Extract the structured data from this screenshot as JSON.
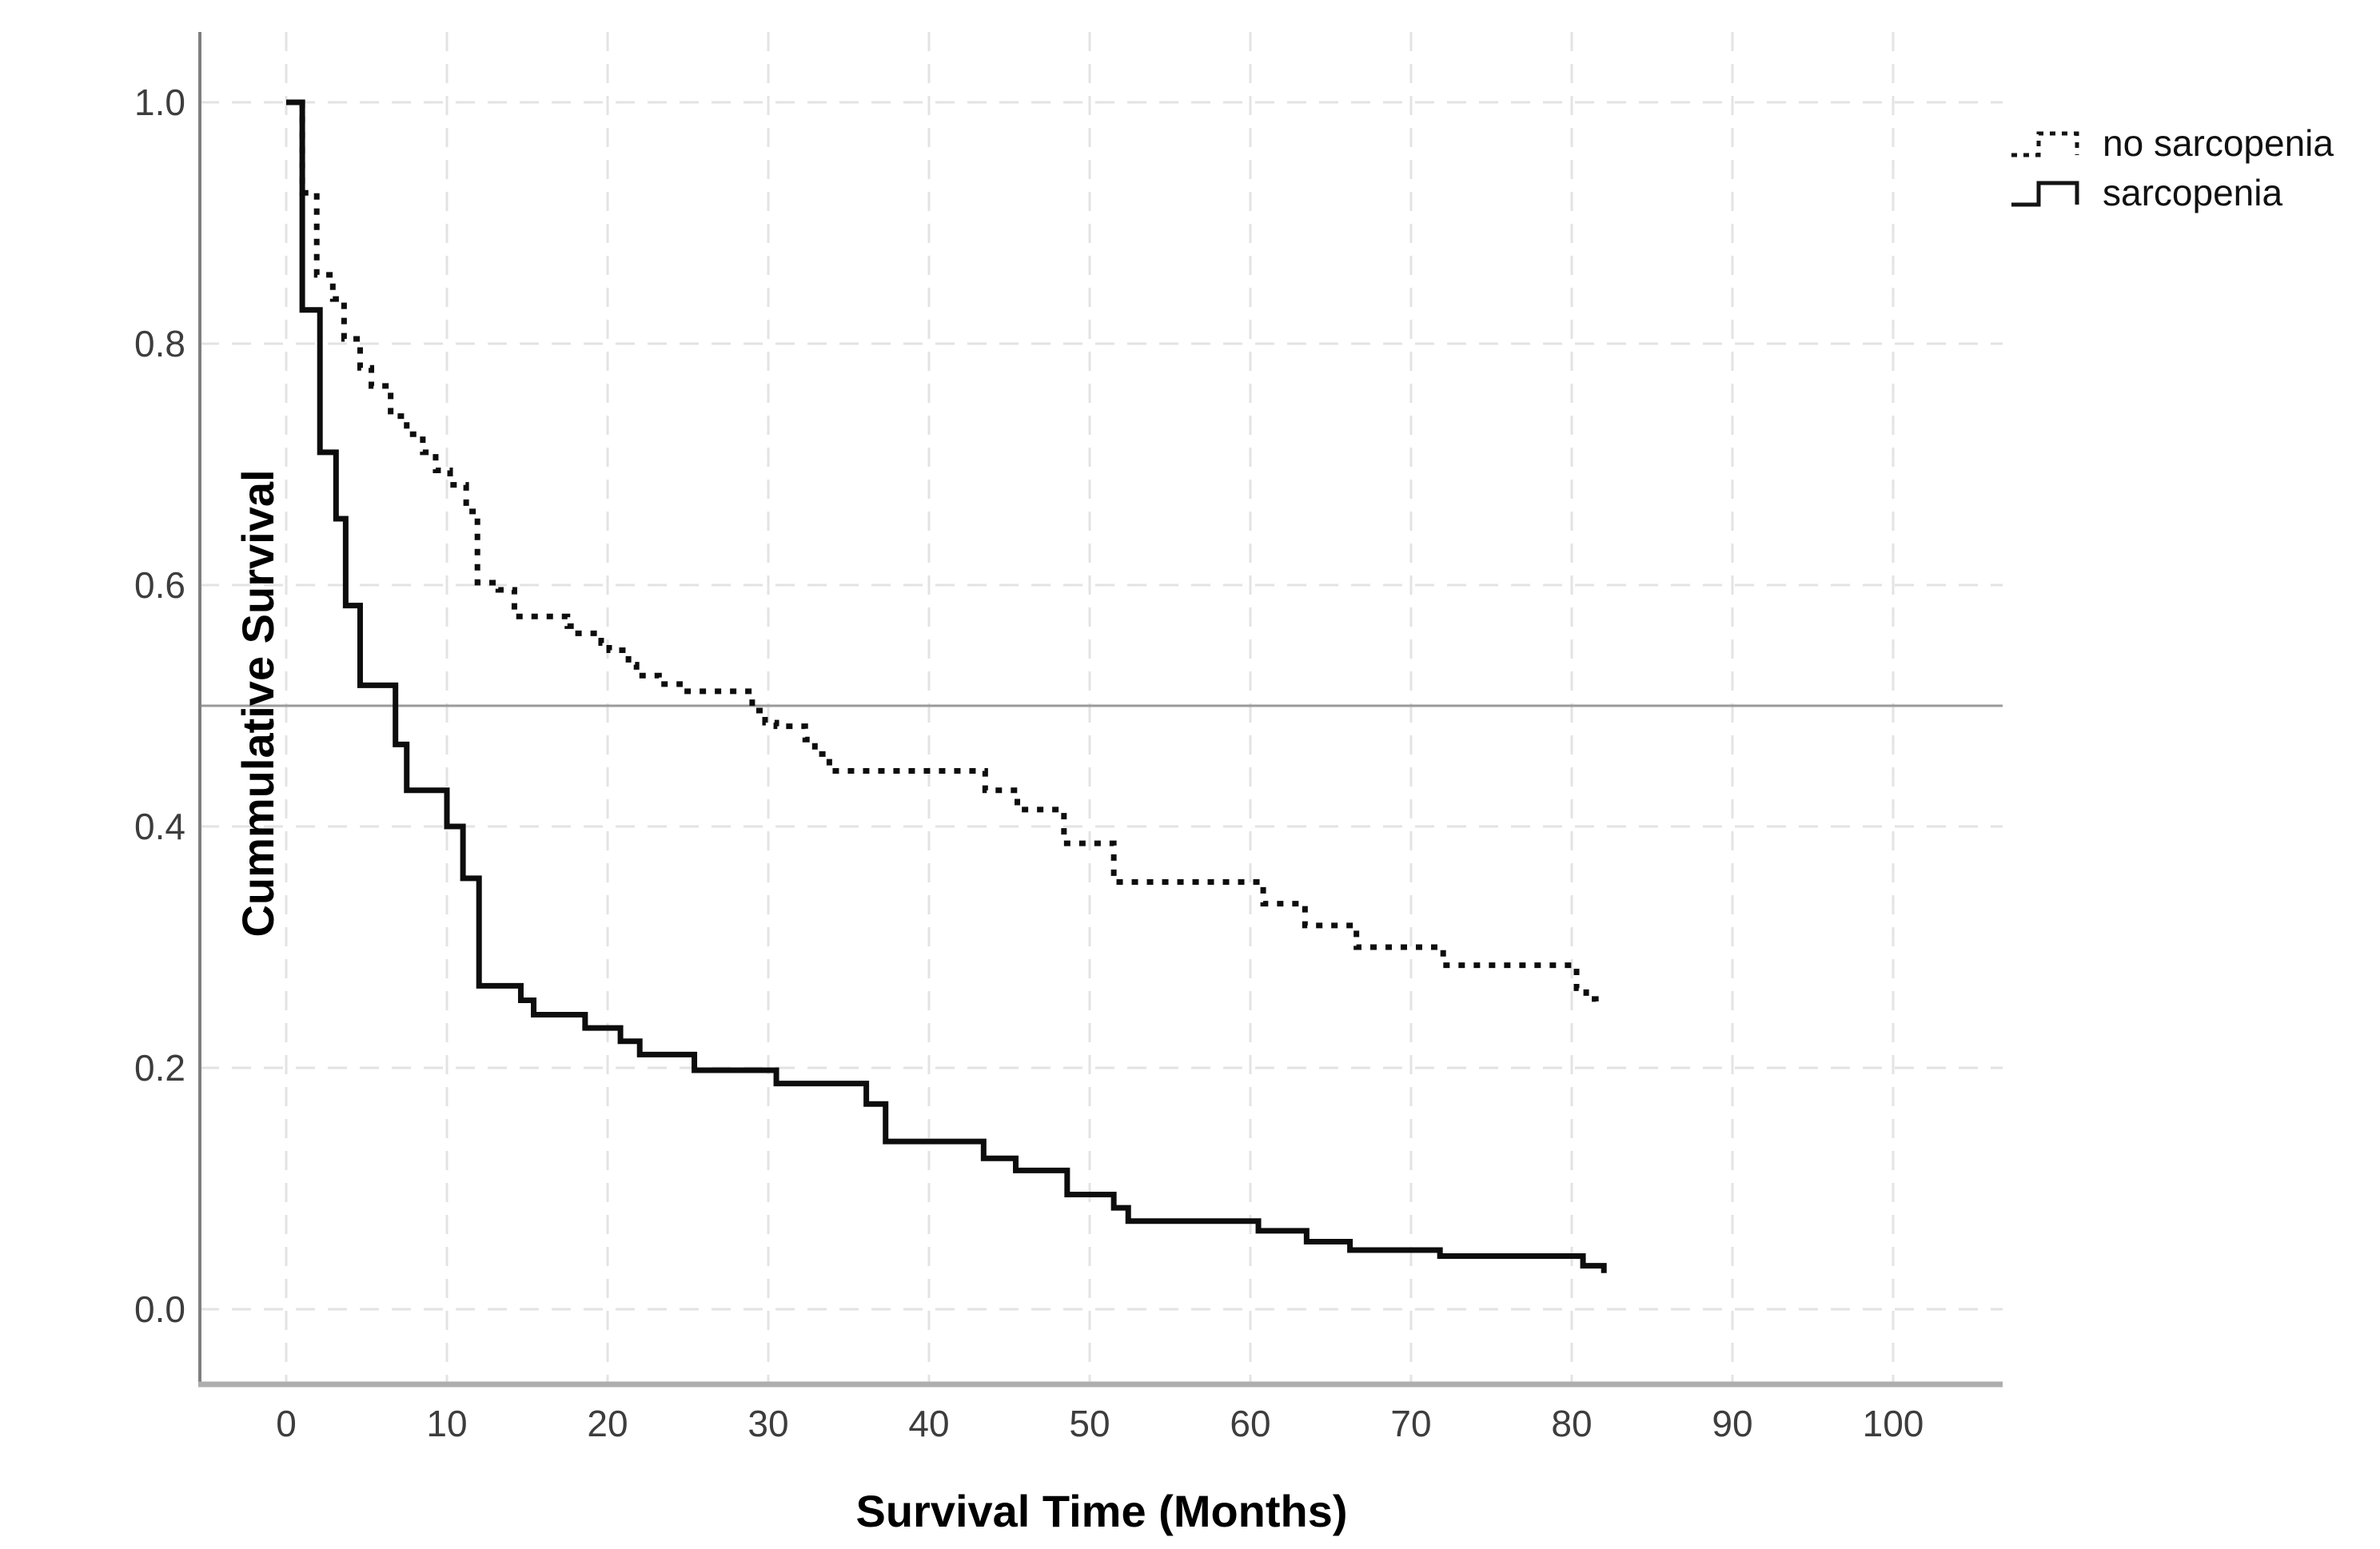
{
  "y_axis": {
    "title": "Cummulative Survival",
    "tick_labels": [
      "1.0",
      "0.8",
      "0.6",
      "0.4",
      "0.2",
      "0.0"
    ],
    "tick_values": [
      1.0,
      0.8,
      0.6,
      0.4,
      0.2,
      0.0
    ]
  },
  "x_axis": {
    "title": "Survival Time (Months)",
    "tick_labels": [
      "0",
      "10",
      "20",
      "30",
      "40",
      "50",
      "60",
      "70",
      "80",
      "90",
      "100"
    ],
    "tick_values": [
      0,
      10,
      20,
      30,
      40,
      50,
      60,
      70,
      80,
      90,
      100
    ]
  },
  "legend": {
    "position": "top-right",
    "items": [
      {
        "label": "no sarcopenia",
        "style": "dotted"
      },
      {
        "label": "sarcopenia",
        "style": "solid"
      }
    ]
  },
  "colors": {
    "curve": "#0d0d0d",
    "grid": "#e3e3e3",
    "left_axis": "#7f7f7f",
    "bottom_axis": "#aeaeae",
    "reference_line": "#9a9a9a",
    "background": "#ffffff"
  },
  "chart_data": {
    "type": "line",
    "subtype": "kaplan-meier-step",
    "title": "",
    "xlabel": "Survival Time (Months)",
    "ylabel": "Cummulative Survival",
    "xlim": [
      -5,
      105
    ],
    "ylim": [
      -0.06,
      1.06
    ],
    "grid": true,
    "grid_style": "dashed",
    "legend_position": "top-right",
    "reference_line_y": 0.5,
    "series": [
      {
        "name": "no sarcopenia",
        "line_style": "dotted",
        "points": [
          [
            0,
            1.0
          ],
          [
            1.0,
            0.925
          ],
          [
            1.9,
            0.857
          ],
          [
            2.9,
            0.837
          ],
          [
            3.6,
            0.804
          ],
          [
            4.6,
            0.78
          ],
          [
            5.3,
            0.765
          ],
          [
            6.5,
            0.74
          ],
          [
            7.5,
            0.725
          ],
          [
            8.5,
            0.71
          ],
          [
            9.3,
            0.695
          ],
          [
            10.2,
            0.683
          ],
          [
            11.2,
            0.661
          ],
          [
            11.9,
            0.602
          ],
          [
            13.2,
            0.596
          ],
          [
            14.2,
            0.574
          ],
          [
            17.5,
            0.566
          ],
          [
            17.9,
            0.56
          ],
          [
            19.6,
            0.552
          ],
          [
            20.1,
            0.546
          ],
          [
            21.3,
            0.534
          ],
          [
            21.8,
            0.525
          ],
          [
            23.2,
            0.518
          ],
          [
            24.5,
            0.512
          ],
          [
            29.0,
            0.496
          ],
          [
            29.8,
            0.486
          ],
          [
            30.5,
            0.483
          ],
          [
            32.3,
            0.472
          ],
          [
            32.9,
            0.46
          ],
          [
            33.8,
            0.446
          ],
          [
            43.5,
            0.43
          ],
          [
            45.5,
            0.414
          ],
          [
            48.4,
            0.386
          ],
          [
            51.5,
            0.354
          ],
          [
            60.8,
            0.336
          ],
          [
            63.4,
            0.318
          ],
          [
            66.6,
            0.3
          ],
          [
            72.0,
            0.285
          ],
          [
            80.3,
            0.266
          ],
          [
            80.9,
            0.257
          ],
          [
            81.5,
            0.248
          ]
        ]
      },
      {
        "name": "sarcopenia",
        "line_style": "solid",
        "points": [
          [
            0,
            1.0
          ],
          [
            1.0,
            0.828
          ],
          [
            2.1,
            0.71
          ],
          [
            3.1,
            0.655
          ],
          [
            3.7,
            0.583
          ],
          [
            4.6,
            0.517
          ],
          [
            6.8,
            0.468
          ],
          [
            7.5,
            0.43
          ],
          [
            10.0,
            0.4
          ],
          [
            11.0,
            0.357
          ],
          [
            12.0,
            0.268
          ],
          [
            14.6,
            0.256
          ],
          [
            15.4,
            0.244
          ],
          [
            18.6,
            0.233
          ],
          [
            20.8,
            0.222
          ],
          [
            22.0,
            0.211
          ],
          [
            25.4,
            0.198
          ],
          [
            30.5,
            0.187
          ],
          [
            36.1,
            0.17
          ],
          [
            37.3,
            0.139
          ],
          [
            43.4,
            0.125
          ],
          [
            45.4,
            0.115
          ],
          [
            48.6,
            0.095
          ],
          [
            51.5,
            0.084
          ],
          [
            52.4,
            0.073
          ],
          [
            60.5,
            0.065
          ],
          [
            63.5,
            0.056
          ],
          [
            66.2,
            0.049
          ],
          [
            71.8,
            0.044
          ],
          [
            80.7,
            0.036
          ],
          [
            82.0,
            0.03
          ]
        ]
      }
    ]
  }
}
